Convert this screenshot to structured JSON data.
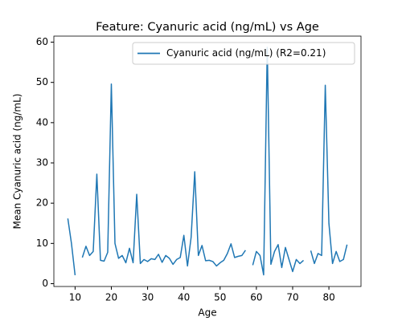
{
  "chart_data": {
    "type": "line",
    "title": "Feature: Cyanuric acid (ng/mL) vs Age",
    "xlabel": "Age",
    "ylabel": "Mean Cyanuric acid (ng/mL)",
    "x": [
      8,
      9,
      10,
      11,
      12,
      13,
      14,
      15,
      16,
      17,
      18,
      19,
      20,
      21,
      22,
      23,
      24,
      25,
      26,
      27,
      28,
      29,
      30,
      31,
      32,
      33,
      34,
      35,
      36,
      37,
      38,
      39,
      40,
      41,
      42,
      43,
      44,
      45,
      46,
      47,
      48,
      49,
      50,
      51,
      52,
      53,
      54,
      55,
      56,
      57,
      58,
      59,
      60,
      61,
      62,
      63,
      64,
      65,
      66,
      67,
      68,
      69,
      70,
      71,
      72,
      73,
      74,
      75,
      76,
      77,
      78,
      79,
      80,
      81,
      82,
      83,
      84,
      85
    ],
    "series": [
      {
        "name": "Cyanuric acid (ng/mL) (R2=0.21)",
        "color": "#1f77b4",
        "values": [
          16.2,
          10,
          2.1,
          null,
          6.5,
          9.3,
          7,
          8,
          27.2,
          5.8,
          5.6,
          7.8,
          49.6,
          10,
          6.3,
          7,
          5.2,
          8.8,
          5.2,
          22.2,
          5,
          6,
          5.5,
          6.2,
          6,
          7.3,
          5.3,
          7,
          6.3,
          4.8,
          6,
          6.5,
          12,
          4.4,
          11.5,
          27.8,
          7,
          9.5,
          5.7,
          5.8,
          5.5,
          4.4,
          5.2,
          5.8,
          7.5,
          9.9,
          6.5,
          6.8,
          7,
          8.3,
          null,
          4.6,
          8,
          7,
          2.2,
          58.7,
          4.8,
          8,
          9.7,
          4,
          9,
          6,
          3,
          6,
          5,
          5.8,
          null,
          8.2,
          5,
          7.5,
          7,
          49.3,
          15,
          5,
          8,
          5.5,
          6,
          9.7
        ]
      }
    ],
    "xlim": [
      4.15,
      88.85
    ],
    "ylim": [
      -0.7,
      61.5
    ],
    "xticks": [
      10,
      20,
      30,
      40,
      50,
      60,
      70,
      80
    ],
    "yticks": [
      0,
      10,
      20,
      30,
      40,
      50,
      60
    ],
    "legend": "upper right",
    "grid": false
  }
}
